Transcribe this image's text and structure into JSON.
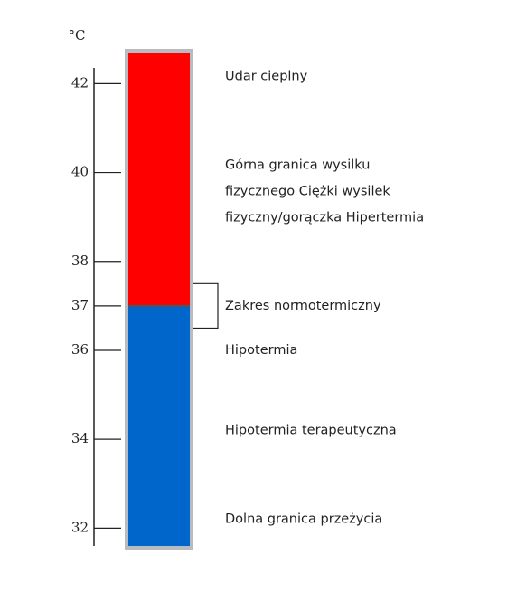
{
  "chart_data": {
    "type": "thermometer",
    "unit": "°C",
    "ylim": [
      31.6,
      42.7
    ],
    "yticks": [
      32,
      34,
      36,
      37,
      38,
      40,
      42
    ],
    "bands": [
      {
        "color": "#ff0000",
        "range": [
          37,
          42.7
        ]
      },
      {
        "color": "#0066cc",
        "range": [
          31.6,
          37
        ]
      }
    ],
    "divider": 37,
    "bracket": [
      36.5,
      37.5
    ],
    "annotations": [
      {
        "value": 42.16,
        "lines": [
          "Udar cieplny"
        ]
      },
      {
        "value": 40.16,
        "lines": [
          "Górna granica wysilku",
          "fizycznego Ciężki wysilek",
          "fizyczny/gorączka Hipertermia"
        ]
      },
      {
        "value": 37,
        "lines": [
          "Zakres normotermiczny"
        ]
      },
      {
        "value": 36,
        "lines": [
          "Hipotermia"
        ]
      },
      {
        "value": 34.2,
        "lines": [
          "Hipotermia terapeutyczna"
        ]
      },
      {
        "value": 32.2,
        "lines": [
          "Dolna granica przeżycia"
        ]
      }
    ]
  }
}
